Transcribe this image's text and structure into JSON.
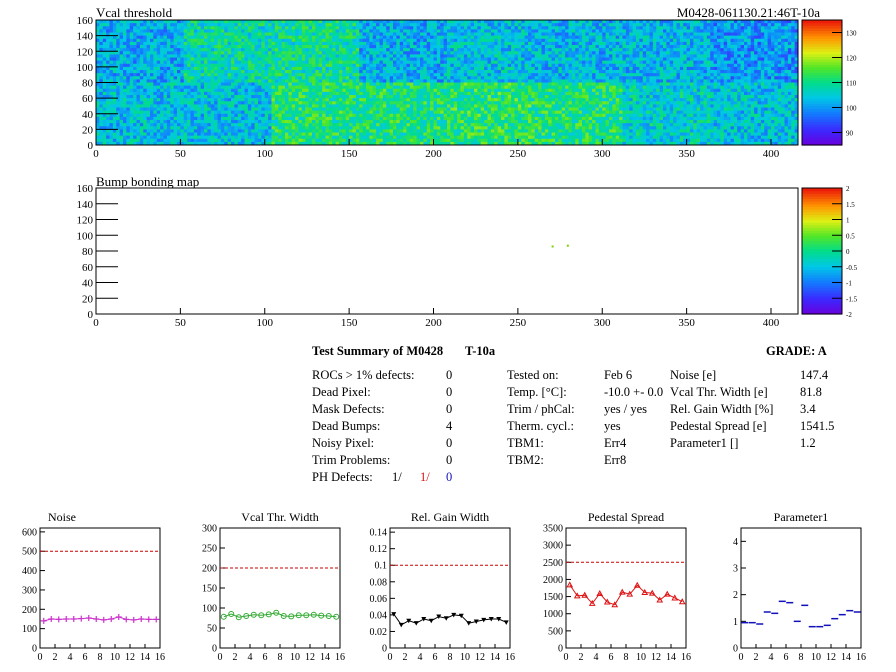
{
  "module_id": "M0428-061130.21:46T-10a",
  "colors": {
    "magenta": "#cc33cc",
    "green": "#33aa33",
    "black": "#000000",
    "red": "#dd1111",
    "blue": "#1111bb",
    "refline": "#cc0000"
  },
  "chart_data": [
    {
      "type": "heatmap",
      "title": "Vcal threshold",
      "x_ticks": [
        "0",
        "50",
        "100",
        "150",
        "200",
        "250",
        "300",
        "350",
        "400"
      ],
      "y_ticks": [
        "0",
        "20",
        "40",
        "60",
        "80",
        "100",
        "120",
        "140",
        "160"
      ],
      "xlim": [
        0,
        416
      ],
      "ylim": [
        0,
        160
      ],
      "zlim": [
        85,
        135
      ],
      "z_ticks": [
        "90",
        "100",
        "110",
        "120",
        "130"
      ],
      "note_values": "approximate mean threshold per readout chip (16 chips, 2 rows x 8 columns)",
      "roc_means": [
        [
          104,
          104,
          111,
          111,
          112,
          111,
          106,
          104
        ],
        [
          102,
          108,
          109,
          102,
          104,
          103,
          103,
          100
        ]
      ]
    },
    {
      "type": "heatmap",
      "title": "Bump bonding map",
      "x_ticks": [
        "0",
        "50",
        "100",
        "150",
        "200",
        "250",
        "300",
        "350",
        "400"
      ],
      "y_ticks": [
        "0",
        "20",
        "40",
        "60",
        "80",
        "100",
        "120",
        "140",
        "160"
      ],
      "xlim": [
        0,
        416
      ],
      "ylim": [
        0,
        160
      ],
      "zlim": [
        -2,
        2
      ],
      "z_ticks": [
        "2",
        "1.5",
        "1",
        "0.5",
        "0",
        "-0.5",
        "-1",
        "-1.5",
        "-2"
      ],
      "points": [
        [
          270,
          87
        ],
        [
          279,
          88
        ]
      ]
    },
    {
      "type": "scatter",
      "title": "Noise",
      "x_ticks": [
        "0",
        "2",
        "4",
        "6",
        "8",
        "10",
        "12",
        "14",
        "16"
      ],
      "y_ticks": [
        "0",
        "100",
        "200",
        "300",
        "400",
        "500",
        "600"
      ],
      "ylim": [
        0,
        620
      ],
      "xlim": [
        0,
        16
      ],
      "reference": 500,
      "x": [
        0,
        1,
        2,
        3,
        4,
        5,
        6,
        7,
        8,
        9,
        10,
        11,
        12,
        13,
        14,
        15
      ],
      "values": [
        140,
        150,
        148,
        150,
        150,
        152,
        155,
        150,
        145,
        150,
        160,
        148,
        145,
        150,
        148,
        148
      ]
    },
    {
      "type": "scatter",
      "title": "Vcal Thr. Width",
      "x_ticks": [
        "0",
        "2",
        "4",
        "6",
        "8",
        "10",
        "12",
        "14",
        "16"
      ],
      "y_ticks": [
        "0",
        "50",
        "100",
        "150",
        "200",
        "250",
        "300"
      ],
      "ylim": [
        0,
        300
      ],
      "xlim": [
        0,
        16
      ],
      "reference": 200,
      "x": [
        0,
        1,
        2,
        3,
        4,
        5,
        6,
        7,
        8,
        9,
        10,
        11,
        12,
        13,
        14,
        15
      ],
      "values": [
        78,
        85,
        77,
        80,
        83,
        82,
        84,
        88,
        80,
        79,
        82,
        82,
        83,
        81,
        80,
        78
      ]
    },
    {
      "type": "line",
      "title": "Rel. Gain Width",
      "x_ticks": [
        "0",
        "2",
        "4",
        "6",
        "8",
        "10",
        "12",
        "14",
        "16"
      ],
      "y_ticks": [
        "0",
        "0.02",
        "0.04",
        "0.06",
        "0.08",
        "0.1",
        "0.12",
        "0.14"
      ],
      "ylim": [
        0,
        0.145
      ],
      "xlim": [
        0,
        16
      ],
      "reference": 0.1,
      "x": [
        0,
        1,
        2,
        3,
        4,
        5,
        6,
        7,
        8,
        9,
        10,
        11,
        12,
        13,
        14,
        15
      ],
      "values": [
        0.041,
        0.028,
        0.033,
        0.03,
        0.035,
        0.033,
        0.038,
        0.036,
        0.04,
        0.039,
        0.03,
        0.032,
        0.034,
        0.035,
        0.035,
        0.031
      ]
    },
    {
      "type": "line",
      "title": "Pedestal Spread",
      "x_ticks": [
        "0",
        "2",
        "4",
        "6",
        "8",
        "10",
        "12",
        "14",
        "16"
      ],
      "y_ticks": [
        "0",
        "500",
        "1000",
        "1500",
        "2000",
        "2500",
        "3000",
        "3500"
      ],
      "ylim": [
        0,
        3500
      ],
      "xlim": [
        0,
        16
      ],
      "reference": 2500,
      "x": [
        0,
        1,
        2,
        3,
        4,
        5,
        6,
        7,
        8,
        9,
        10,
        11,
        12,
        13,
        14,
        15
      ],
      "values": [
        1840,
        1520,
        1540,
        1300,
        1590,
        1340,
        1260,
        1630,
        1570,
        1830,
        1620,
        1600,
        1400,
        1570,
        1460,
        1350
      ]
    },
    {
      "type": "scatter",
      "title": "Parameter1",
      "x_ticks": [
        "0",
        "2",
        "4",
        "6",
        "8",
        "10",
        "12",
        "14",
        "16"
      ],
      "y_ticks": [
        "0",
        "1",
        "2",
        "3",
        "4"
      ],
      "ylim": [
        0,
        4.5
      ],
      "xlim": [
        0,
        16
      ],
      "x": [
        0,
        1,
        2,
        3,
        4,
        5,
        6,
        7,
        8,
        9,
        10,
        11,
        12,
        13,
        14,
        15
      ],
      "values": [
        0.95,
        0.95,
        0.9,
        1.35,
        1.3,
        1.75,
        1.7,
        1.0,
        1.6,
        0.8,
        0.8,
        0.85,
        1.1,
        1.25,
        1.4,
        1.35
      ]
    }
  ],
  "summary": {
    "title": "Test Summary of M0428",
    "temp_label": "T-10a",
    "grade": "GRADE:  A",
    "left": [
      {
        "label": "ROCs > 1% defects:",
        "value": "0"
      },
      {
        "label": "Dead Pixel:",
        "value": "0"
      },
      {
        "label": "Mask Defects:",
        "value": "0"
      },
      {
        "label": "Dead Bumps:",
        "value": "4"
      },
      {
        "label": "Noisy Pixel:",
        "value": "0"
      },
      {
        "label": "Trim Problems:",
        "value": "0"
      }
    ],
    "ph_label": "PH Defects:",
    "ph_values": [
      "1/",
      "1/",
      "0"
    ],
    "middle": [
      {
        "label": "Tested on:",
        "value": "Feb 6"
      },
      {
        "label": "Temp. [°C]:",
        "value": "-10.0 +- 0.0"
      },
      {
        "label": "Trim / phCal:",
        "value": "yes / yes"
      },
      {
        "label": "Therm. cycl.:",
        "value": "yes"
      },
      {
        "label": "TBM1:",
        "value": "Err4"
      },
      {
        "label": "TBM2:",
        "value": "Err8"
      }
    ],
    "right": [
      {
        "label": "Noise [e]",
        "value": "147.4"
      },
      {
        "label": "Vcal Thr. Width [e]",
        "value": "81.8"
      },
      {
        "label": "Rel. Gain Width [%]",
        "value": "3.4"
      },
      {
        "label": "Pedestal Spread [e]",
        "value": "1541.5"
      },
      {
        "label": "Parameter1 []",
        "value": "1.2"
      }
    ]
  }
}
